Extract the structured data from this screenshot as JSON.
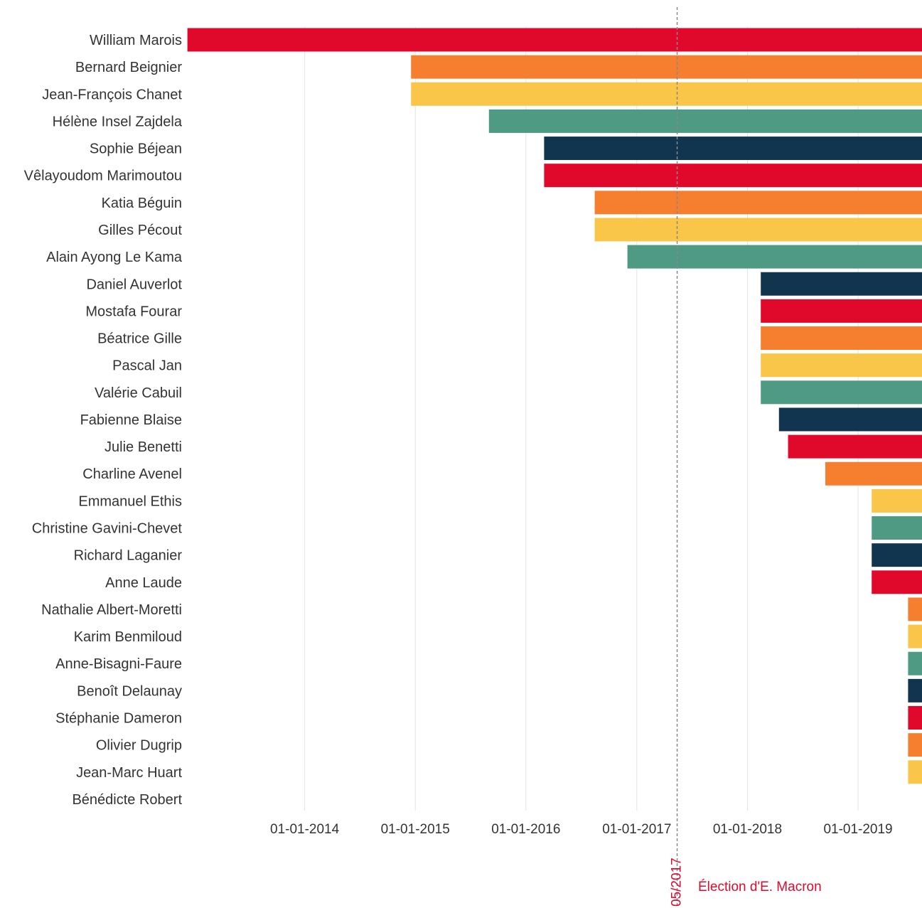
{
  "chart_data": {
    "type": "bar",
    "orientation": "horizontal",
    "categories": [
      "William Marois",
      "Bernard Beignier",
      "Jean-François Chanet",
      "Hélène Insel Zajdela",
      "Sophie Béjean",
      "Vêlayoudom Marimoutou",
      "Katia Béguin",
      "Gilles Pécout",
      "Alain Ayong Le Kama",
      "Daniel Auverlot",
      "Mostafa Fourar",
      "Béatrice Gille",
      "Pascal Jan",
      "Valérie Cabuil",
      "Fabienne Blaise",
      "Julie Benetti",
      "Charline Avenel",
      "Emmanuel Ethis",
      "Christine Gavini-Chevet",
      "Richard Laganier",
      "Anne Laude",
      "Nathalie Albert-Moretti",
      "Karim Benmiloud",
      "Anne-Bisagni-Faure",
      "Benoît Delaunay",
      "Stéphanie Dameron",
      "Olivier Dugrip",
      "Jean-Marc Huart",
      "Bénédicte Robert"
    ],
    "start_dates": [
      "2012-12-10",
      "2014-12-18",
      "2014-12-18",
      "2015-09-01",
      "2016-03-01",
      "2016-03-01",
      "2016-08-15",
      "2016-08-15",
      "2016-12-01",
      "2018-02-14",
      "2018-02-14",
      "2018-02-14",
      "2018-02-14",
      "2018-02-14",
      "2018-04-15",
      "2018-05-15",
      "2018-09-15",
      "2019-02-15",
      "2019-02-15",
      "2019-02-15",
      "2019-02-15",
      "2019-06-15",
      "2019-06-15",
      "2019-06-15",
      "2019-06-15",
      "2019-06-15",
      "2019-06-15",
      "2019-06-15",
      null
    ],
    "end_date": "2019-07-31",
    "colors": [
      "#e0092b",
      "#f57e2f",
      "#f9c64a",
      "#4f9a83",
      "#12354f"
    ],
    "xaxis": {
      "min": "2013-01-01",
      "max": "2019-07-31",
      "ticks": [
        "2014-01-01",
        "2015-01-01",
        "2016-01-01",
        "2017-01-01",
        "2018-01-01",
        "2019-01-01"
      ],
      "tick_labels": [
        "01-01-2014",
        "01-01-2015",
        "01-01-2016",
        "01-01-2017",
        "01-01-2018",
        "01-01-2019"
      ]
    },
    "grid": true,
    "annotation": {
      "date": "2017-05-14",
      "date_label": "05/2017",
      "text": "Élection d'E. Macron",
      "color": "#e0092b"
    }
  }
}
